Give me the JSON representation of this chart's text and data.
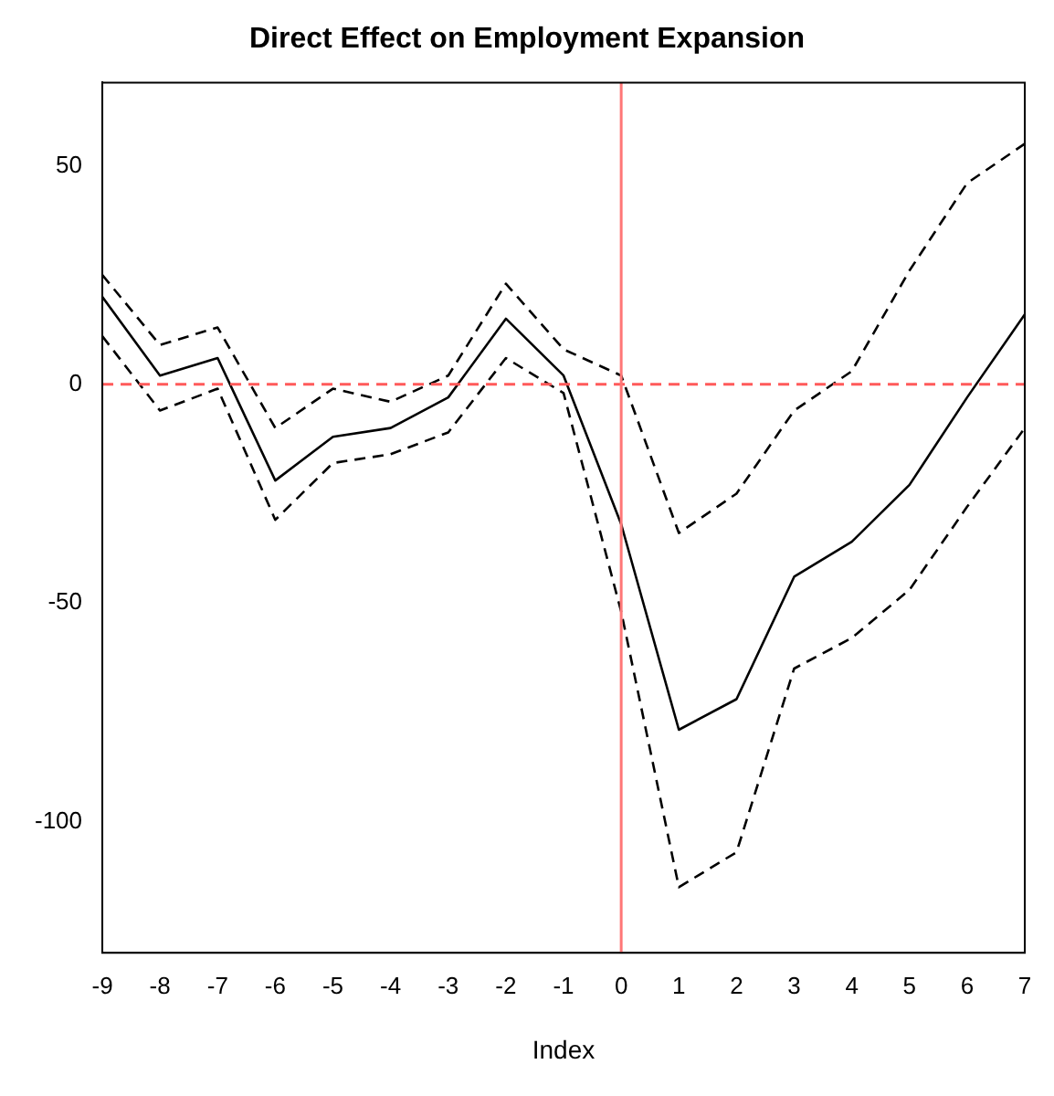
{
  "chart_data": {
    "type": "line",
    "title": "Direct Effect on Employment Expansion",
    "xlabel": "Index",
    "x": [
      -9,
      -8,
      -7,
      -6,
      -5,
      -4,
      -3,
      -2,
      -1,
      0,
      1,
      2,
      3,
      4,
      5,
      6,
      7
    ],
    "series": [
      {
        "color": "#000000",
        "line_style": "solid",
        "values": [
          20,
          2,
          6,
          -22,
          -12,
          -10,
          -3,
          15,
          2,
          -32,
          -79,
          -72,
          -44,
          -36,
          -23,
          -3,
          16
        ]
      },
      {
        "color": "#000000",
        "line_style": "dashed",
        "values": [
          25,
          9,
          13,
          -10,
          -1,
          -4,
          2,
          23,
          8,
          2,
          -34,
          -25,
          -6,
          3,
          26,
          46,
          55
        ]
      },
      {
        "color": "#000000",
        "line_style": "dashed",
        "values": [
          11,
          -6,
          -1,
          -31,
          -18,
          -16,
          -11,
          6,
          -2,
          -52,
          -115,
          -107,
          -65,
          -58,
          -47,
          -28,
          -10
        ]
      }
    ],
    "xlim": [
      -9,
      7
    ],
    "xticks": [
      -9,
      -8,
      -7,
      -6,
      -5,
      -4,
      -3,
      -2,
      -1,
      0,
      1,
      2,
      3,
      4,
      5,
      6,
      7
    ],
    "ylim": [
      -130,
      69
    ],
    "yticks": [
      -100,
      -50,
      0,
      50
    ],
    "ref_lines": [
      {
        "axis": "y",
        "value": 0,
        "color": "#ff5a5a",
        "line_style": "dashed"
      },
      {
        "axis": "x",
        "value": 0,
        "color": "#ff7777",
        "line_style": "solid"
      }
    ],
    "grid": false,
    "legend": false,
    "marker": "none"
  }
}
